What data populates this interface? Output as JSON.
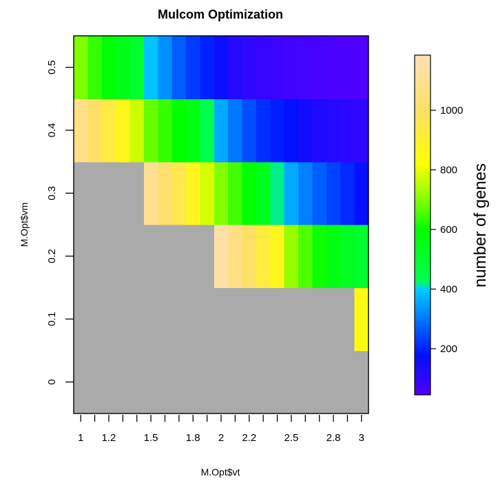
{
  "chart_data": {
    "type": "heatmap",
    "title": "Mulcom Optimization",
    "xlabel": "M.Opt$vt",
    "ylabel": "M.Opt$vm",
    "x": [
      1.0,
      1.1,
      1.2,
      1.3,
      1.4,
      1.5,
      1.6,
      1.7,
      1.8,
      1.9,
      2.0,
      2.1,
      2.2,
      2.3,
      2.4,
      2.5,
      2.6,
      2.7,
      2.8,
      2.9,
      3.0
    ],
    "x_tick_labels": [
      "1",
      "1.2",
      "1.5",
      "1.8",
      "2",
      "2.2",
      "2.5",
      "2.8",
      "3"
    ],
    "y": [
      0,
      0.1,
      0.2,
      0.3,
      0.4,
      0.5
    ],
    "y_tick_labels": [
      "0",
      "0.1",
      "0.2",
      "0.3",
      "0.4",
      "0.5"
    ],
    "rows": [
      {
        "y": 0,
        "values": [
          null,
          null,
          null,
          null,
          null,
          null,
          null,
          null,
          null,
          null,
          null,
          null,
          null,
          null,
          null,
          null,
          null,
          null,
          null,
          null,
          null
        ]
      },
      {
        "y": 0.1,
        "values": [
          null,
          null,
          null,
          null,
          null,
          null,
          null,
          null,
          null,
          null,
          null,
          null,
          null,
          null,
          null,
          null,
          null,
          null,
          null,
          null,
          850
        ]
      },
      {
        "y": 0.2,
        "values": [
          null,
          null,
          null,
          null,
          null,
          null,
          null,
          null,
          null,
          null,
          1150,
          1080,
          1000,
          930,
          870,
          720,
          660,
          610,
          560,
          530,
          500
        ]
      },
      {
        "y": 0.3,
        "values": [
          null,
          null,
          null,
          null,
          null,
          1100,
          1020,
          960,
          880,
          780,
          700,
          650,
          600,
          540,
          420,
          360,
          310,
          270,
          240,
          210,
          170
        ]
      },
      {
        "y": 0.4,
        "values": [
          1080,
          1000,
          940,
          870,
          770,
          680,
          640,
          600,
          560,
          430,
          360,
          300,
          250,
          215,
          195,
          175,
          150,
          130,
          115,
          105,
          100
        ]
      },
      {
        "y": 0.5,
        "values": [
          700,
          640,
          590,
          550,
          500,
          390,
          330,
          270,
          230,
          200,
          160,
          120,
          100,
          90,
          80,
          70,
          65,
          60,
          55,
          50,
          45
        ]
      }
    ],
    "missing_color": "#AAAAAA",
    "colorbar": {
      "label": "number of genes",
      "tick_values": [
        200,
        400,
        600,
        800,
        1000
      ],
      "tick_labels": [
        "200",
        "400",
        "600",
        "800",
        "1000"
      ],
      "range": [
        45,
        1185
      ],
      "stops": [
        {
          "value": 45,
          "color": "#5000FF"
        },
        {
          "value": 180,
          "color": "#0010FF"
        },
        {
          "value": 400,
          "color": "#00CCFF"
        },
        {
          "value": 430,
          "color": "#00FF4D"
        },
        {
          "value": 600,
          "color": "#00FF00"
        },
        {
          "value": 700,
          "color": "#80FF00"
        },
        {
          "value": 820,
          "color": "#FFFF00"
        },
        {
          "value": 1000,
          "color": "#FFE066"
        },
        {
          "value": 1185,
          "color": "#FFE0B3"
        }
      ]
    },
    "grid": false,
    "legend": "right"
  }
}
